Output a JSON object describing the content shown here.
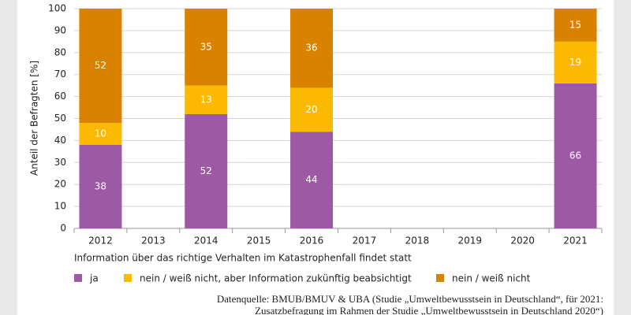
{
  "chart_data": {
    "type": "stacked_bar",
    "y_label": "Anteil der Befragten [%]",
    "categories": [
      "2012",
      "2013",
      "2014",
      "2015",
      "2016",
      "2017",
      "2018",
      "2019",
      "2020",
      "2021"
    ],
    "series": [
      {
        "name": "ja",
        "color": "#9e59a6",
        "values": [
          38,
          null,
          52,
          null,
          44,
          null,
          null,
          null,
          null,
          66
        ]
      },
      {
        "name": "nein / weiß nicht, aber Information zukünftig beabsichtigt",
        "color": "#fbb900",
        "values": [
          10,
          null,
          13,
          null,
          20,
          null,
          null,
          null,
          null,
          19
        ]
      },
      {
        "name": "nein / weiß nicht",
        "color": "#d98200",
        "values": [
          52,
          null,
          35,
          null,
          36,
          null,
          null,
          null,
          null,
          15
        ]
      }
    ],
    "ylim": [
      0,
      100
    ],
    "yticks": [
      0,
      10,
      20,
      30,
      40,
      50,
      60,
      70,
      80,
      90,
      100
    ],
    "grid": true,
    "legend_title": "Information über das richtige Verhalten im Katastrophenfall findet statt",
    "source": [
      "Datenquelle: BMUB/BMUV & UBA (Studie „Umweltbewusstsein in Deutschland“, für 2021:",
      "Zusatzbefragung im Rahmen der Studie „Umweltbewusstsein in Deutschland 2020“)"
    ]
  }
}
